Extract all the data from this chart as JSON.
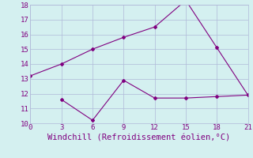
{
  "xlabel": "Windchill (Refroidissement éolien,°C)",
  "line1_x": [
    0,
    3,
    6,
    9,
    12,
    15,
    18,
    21
  ],
  "line1_y": [
    13.2,
    14.0,
    15.0,
    15.8,
    16.5,
    18.3,
    15.1,
    11.9
  ],
  "line2_x": [
    3,
    6,
    9,
    12,
    15,
    18,
    21
  ],
  "line2_y": [
    11.6,
    10.2,
    12.9,
    11.7,
    11.7,
    11.8,
    11.9
  ],
  "line_color": "#800080",
  "marker": "D",
  "marker_size": 2,
  "bg_color": "#d4f0f0",
  "grid_color": "#b0b8d8",
  "xlim": [
    0,
    21
  ],
  "ylim": [
    10,
    18
  ],
  "xticks": [
    0,
    3,
    6,
    9,
    12,
    15,
    18,
    21
  ],
  "yticks": [
    10,
    11,
    12,
    13,
    14,
    15,
    16,
    17,
    18
  ],
  "tick_color": "#800080",
  "label_color": "#800080",
  "tick_fontsize": 6.5,
  "xlabel_fontsize": 7.5,
  "linewidth": 0.8
}
